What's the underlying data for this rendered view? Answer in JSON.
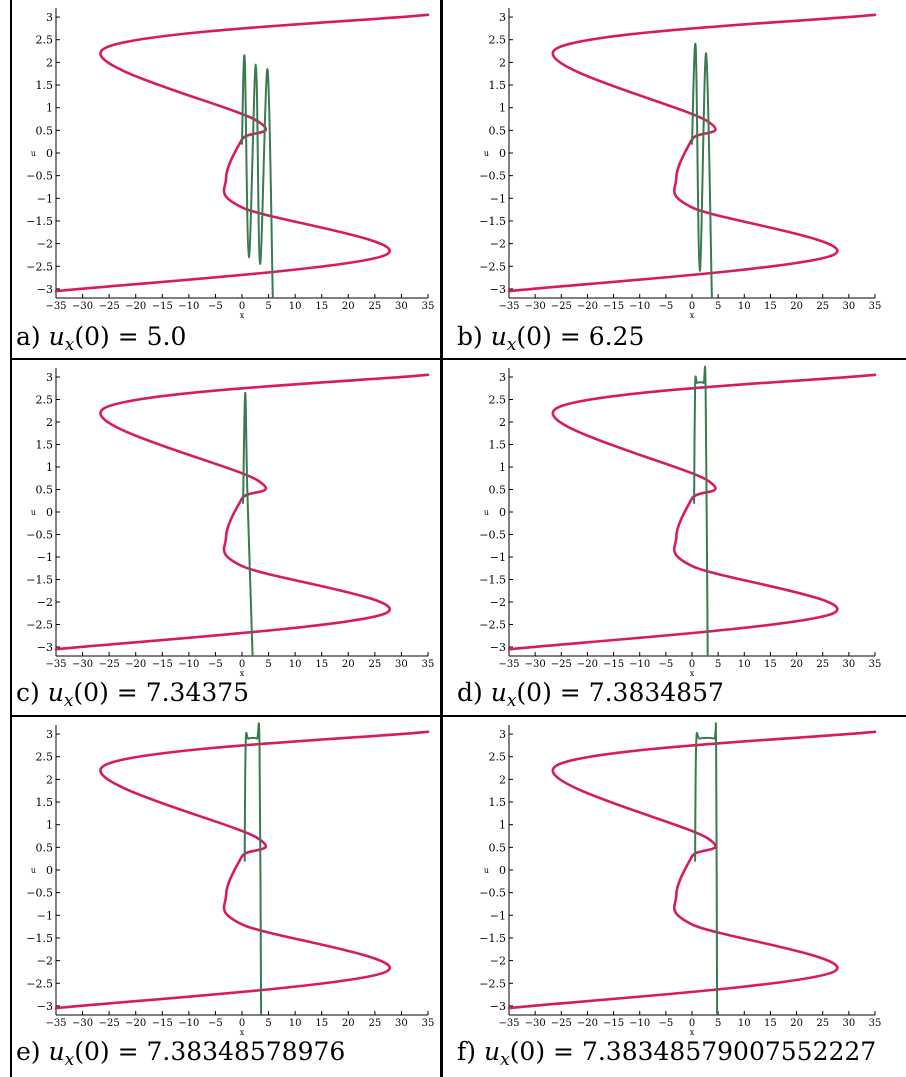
{
  "panels": [
    {
      "label": "a)",
      "ux0": "5.0",
      "chart_data": {
        "type": "line",
        "xlim": [
          -35,
          35
        ],
        "ylim": [
          -3.2,
          3.2
        ],
        "xlabel": "x",
        "ylabel": "u",
        "xticks": [
          "-35",
          "-30",
          "-25",
          "-20",
          "-15",
          "-10",
          "-5",
          "0",
          "5",
          "10",
          "15",
          "20",
          "25",
          "30",
          "35"
        ],
        "yticks": [
          "3",
          "2.5",
          "2",
          "1.5",
          "1",
          "0.5",
          "0",
          "-0.5",
          "-1",
          "-1.5",
          "-2",
          "-2.5",
          "-3"
        ],
        "series": [
          {
            "color": "#d81b60",
            "points": [
              [
                35,
                3.05
              ],
              [
                -26,
                2.3
              ],
              [
                3,
                0.7
              ],
              [
                0,
                0.3
              ],
              [
                -3,
                -0.55
              ],
              [
                0,
                -1.2
              ],
              [
                27,
                -2.25
              ],
              [
                -35,
                -3.05
              ]
            ]
          },
          {
            "color": "#3a7a50",
            "points": [
              [
                0,
                0.2
              ],
              [
                0.5,
                2.1
              ],
              [
                1.3,
                -2.3
              ],
              [
                2.6,
                1.95
              ],
              [
                3.4,
                -2.45
              ],
              [
                4.8,
                1.85
              ],
              [
                5.8,
                -3.2
              ]
            ]
          }
        ]
      }
    },
    {
      "label": "b)",
      "ux0": "6.25",
      "chart_data": {
        "type": "line",
        "xlim": [
          -35,
          35
        ],
        "ylim": [
          -3.2,
          3.2
        ],
        "xlabel": "x",
        "ylabel": "u",
        "xticks": [
          "-35",
          "-30",
          "-25",
          "-20",
          "-15",
          "-10",
          "-5",
          "0",
          "5",
          "10",
          "15",
          "20",
          "25",
          "30",
          "35"
        ],
        "yticks": [
          "3",
          "2.5",
          "2",
          "1.5",
          "1",
          "0.5",
          "0",
          "-0.5",
          "-1",
          "-1.5",
          "-2",
          "-2.5",
          "-3"
        ],
        "series": [
          {
            "color": "#d81b60",
            "points": [
              [
                35,
                3.05
              ],
              [
                -26,
                2.3
              ],
              [
                3,
                0.7
              ],
              [
                0,
                0.3
              ],
              [
                -3,
                -0.55
              ],
              [
                0,
                -1.2
              ],
              [
                27,
                -2.25
              ],
              [
                -35,
                -3.05
              ]
            ]
          },
          {
            "color": "#3a7a50",
            "points": [
              [
                0,
                0.2
              ],
              [
                0.7,
                2.35
              ],
              [
                1.5,
                -2.6
              ],
              [
                2.7,
                2.2
              ],
              [
                3.8,
                -3.2
              ]
            ]
          }
        ]
      }
    },
    {
      "label": "c)",
      "ux0": "7.34375",
      "chart_data": {
        "type": "line",
        "xlim": [
          -35,
          35
        ],
        "ylim": [
          -3.2,
          3.2
        ],
        "xlabel": "x",
        "ylabel": "u",
        "xticks": [
          "-35",
          "-30",
          "-25",
          "-20",
          "-15",
          "-10",
          "-5",
          "0",
          "5",
          "10",
          "15",
          "20",
          "25",
          "30",
          "35"
        ],
        "yticks": [
          "3",
          "2.5",
          "2",
          "1.5",
          "1",
          "0.5",
          "0",
          "-0.5",
          "-1",
          "-1.5",
          "-2",
          "-2.5",
          "-3"
        ],
        "series": [
          {
            "color": "#d81b60",
            "points": [
              [
                35,
                3.05
              ],
              [
                -26,
                2.3
              ],
              [
                3,
                0.7
              ],
              [
                0,
                0.3
              ],
              [
                -3,
                -0.55
              ],
              [
                0,
                -1.2
              ],
              [
                27,
                -2.25
              ],
              [
                -35,
                -3.05
              ]
            ]
          },
          {
            "color": "#3a7a50",
            "points": [
              [
                0.2,
                0.2
              ],
              [
                0.6,
                2.65
              ],
              [
                1.0,
                0.5
              ],
              [
                2.0,
                -3.2
              ]
            ]
          }
        ]
      }
    },
    {
      "label": "d)",
      "ux0": "7.3834857",
      "chart_data": {
        "type": "line",
        "xlim": [
          -35,
          35
        ],
        "ylim": [
          -3.2,
          3.2
        ],
        "xlabel": "x",
        "ylabel": "u",
        "xticks": [
          "-35",
          "-30",
          "-25",
          "-20",
          "-15",
          "-10",
          "-5",
          "0",
          "5",
          "10",
          "15",
          "20",
          "25",
          "30",
          "35"
        ],
        "yticks": [
          "3",
          "2.5",
          "2",
          "1.5",
          "1",
          "0.5",
          "0",
          "-0.5",
          "-1",
          "-1.5",
          "-2",
          "-2.5",
          "-3"
        ],
        "series": [
          {
            "color": "#d81b60",
            "points": [
              [
                35,
                3.05
              ],
              [
                -26,
                2.3
              ],
              [
                3,
                0.7
              ],
              [
                0,
                0.3
              ],
              [
                -3,
                -0.55
              ],
              [
                0,
                -1.2
              ],
              [
                27,
                -2.25
              ],
              [
                -35,
                -3.05
              ]
            ]
          },
          {
            "color": "#3a7a50",
            "points": [
              [
                0.4,
                0.2
              ],
              [
                0.6,
                2.8
              ],
              [
                1.0,
                2.87
              ],
              [
                2.2,
                2.87
              ],
              [
                2.6,
                2.75
              ],
              [
                3.0,
                -3.2
              ]
            ]
          }
        ]
      }
    },
    {
      "label": "e)",
      "ux0": "7.38348578976",
      "chart_data": {
        "type": "line",
        "xlim": [
          -35,
          35
        ],
        "ylim": [
          -3.2,
          3.2
        ],
        "xlabel": "x",
        "ylabel": "u",
        "xticks": [
          "-35",
          "-30",
          "-25",
          "-20",
          "-15",
          "-10",
          "-5",
          "0",
          "5",
          "10",
          "15",
          "20",
          "25",
          "30",
          "35"
        ],
        "yticks": [
          "3",
          "2.5",
          "2",
          "1.5",
          "1",
          "0.5",
          "0",
          "-0.5",
          "-1",
          "-1.5",
          "-2",
          "-2.5",
          "-3"
        ],
        "series": [
          {
            "color": "#d81b60",
            "points": [
              [
                35,
                3.05
              ],
              [
                -26,
                2.3
              ],
              [
                3,
                0.7
              ],
              [
                0,
                0.3
              ],
              [
                -3,
                -0.55
              ],
              [
                0,
                -1.2
              ],
              [
                27,
                -2.25
              ],
              [
                -35,
                -3.05
              ]
            ]
          },
          {
            "color": "#3a7a50",
            "points": [
              [
                0.5,
                0.2
              ],
              [
                0.7,
                2.8
              ],
              [
                1.2,
                2.9
              ],
              [
                2.8,
                2.9
              ],
              [
                3.3,
                2.75
              ],
              [
                3.6,
                -3.2
              ]
            ]
          }
        ]
      }
    },
    {
      "label": "f)",
      "ux0": "7.38348579007552227",
      "chart_data": {
        "type": "line",
        "xlim": [
          -35,
          35
        ],
        "ylim": [
          -3.2,
          3.2
        ],
        "xlabel": "x",
        "ylabel": "u",
        "xticks": [
          "-35",
          "-30",
          "-25",
          "-20",
          "-15",
          "-10",
          "-5",
          "0",
          "5",
          "10",
          "15",
          "20",
          "25",
          "30",
          "35"
        ],
        "yticks": [
          "3",
          "2.5",
          "2",
          "1.5",
          "1",
          "0.5",
          "0",
          "-0.5",
          "-1",
          "-1.5",
          "-2",
          "-2.5",
          "-3"
        ],
        "series": [
          {
            "color": "#d81b60",
            "points": [
              [
                35,
                3.05
              ],
              [
                -26,
                2.3
              ],
              [
                3,
                0.7
              ],
              [
                0,
                0.3
              ],
              [
                -3,
                -0.55
              ],
              [
                0,
                -1.2
              ],
              [
                27,
                -2.25
              ],
              [
                -35,
                -3.05
              ]
            ]
          },
          {
            "color": "#3a7a50",
            "points": [
              [
                0.6,
                0.2
              ],
              [
                0.8,
                2.8
              ],
              [
                1.5,
                2.9
              ],
              [
                4.2,
                2.9
              ],
              [
                4.6,
                2.75
              ],
              [
                4.8,
                -3.2
              ]
            ]
          }
        ]
      }
    }
  ]
}
